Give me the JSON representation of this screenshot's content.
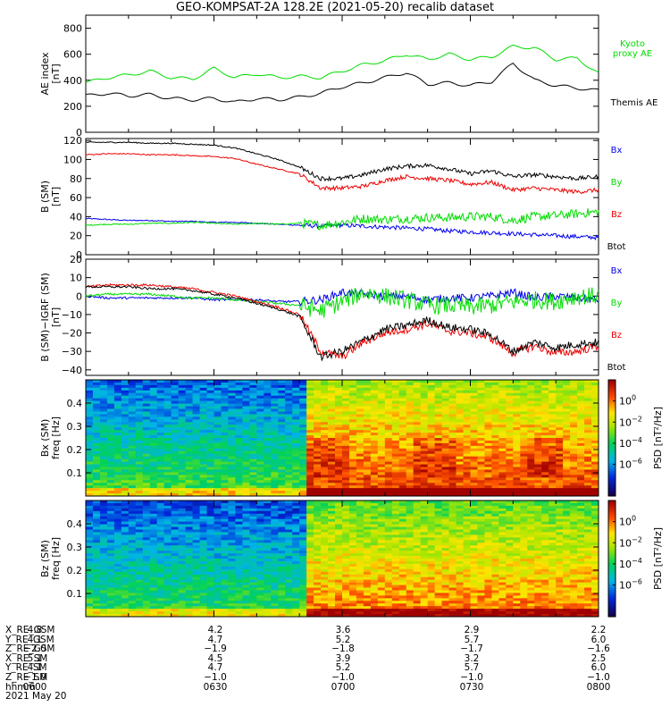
{
  "chart_data": [
    {
      "type": "line",
      "title": "GEO-KOMPSAT-2A 128.2E (2021-05-20) recalib dataset",
      "ylabel": [
        "AE index",
        "[nT]"
      ],
      "ylim": [
        0,
        900
      ],
      "yticks": [
        0,
        200,
        400,
        600,
        800
      ],
      "grid": false,
      "legend_position": "right",
      "x": [
        0,
        5,
        10,
        15,
        20,
        25,
        30,
        35,
        40,
        45,
        50,
        55,
        60,
        65,
        70,
        75,
        80,
        85,
        90,
        95,
        100,
        105,
        110,
        115,
        120
      ],
      "series": [
        {
          "name": "Kyoto proxy AE",
          "color": "#00dd00",
          "values": [
            380,
            420,
            440,
            470,
            420,
            410,
            490,
            420,
            450,
            420,
            430,
            420,
            470,
            520,
            550,
            600,
            560,
            600,
            560,
            580,
            660,
            650,
            560,
            570,
            450
          ]
        },
        {
          "name": "Themis AE",
          "color": "#000000",
          "values": [
            280,
            300,
            280,
            290,
            260,
            250,
            260,
            230,
            260,
            250,
            270,
            300,
            350,
            380,
            420,
            460,
            370,
            380,
            360,
            390,
            530,
            400,
            360,
            340,
            320
          ]
        }
      ]
    },
    {
      "type": "line",
      "ylabel": [
        "B (SM)",
        "[nT]"
      ],
      "ylim": [
        0,
        122
      ],
      "yticks": [
        0,
        20,
        40,
        60,
        80,
        100,
        120
      ],
      "grid": false,
      "legend_position": "right",
      "x": [
        0,
        5,
        10,
        15,
        20,
        25,
        30,
        35,
        40,
        45,
        50,
        55,
        60,
        65,
        70,
        75,
        80,
        85,
        90,
        95,
        100,
        105,
        110,
        115,
        120
      ],
      "series": [
        {
          "name": "Bx",
          "color": "#0000ee",
          "values": [
            38,
            37,
            36,
            36,
            35,
            35,
            34,
            34,
            33,
            32,
            31,
            30,
            31,
            30,
            29,
            28,
            27,
            25,
            24,
            23,
            22,
            21,
            20,
            19,
            18
          ]
        },
        {
          "name": "By",
          "color": "#00dd00",
          "values": [
            31,
            32,
            32,
            33,
            33,
            34,
            33,
            32,
            33,
            32,
            33,
            31,
            34,
            38,
            37,
            38,
            39,
            39,
            40,
            40,
            36,
            40,
            41,
            43,
            45
          ]
        },
        {
          "name": "Bz",
          "color": "#ee0000",
          "values": [
            105,
            106,
            106,
            105,
            105,
            104,
            103,
            101,
            95,
            90,
            85,
            70,
            70,
            72,
            78,
            82,
            80,
            78,
            74,
            76,
            68,
            70,
            68,
            66,
            68
          ]
        },
        {
          "name": "Btot",
          "color": "#000000",
          "values": [
            118,
            118,
            118,
            117,
            117,
            116,
            115,
            112,
            106,
            100,
            92,
            80,
            80,
            84,
            90,
            93,
            94,
            90,
            85,
            88,
            82,
            84,
            82,
            80,
            82
          ]
        }
      ]
    },
    {
      "type": "line",
      "ylabel": [
        "B (SM)−IGRF (SM)",
        "[nT]"
      ],
      "ylim": [
        -43,
        20
      ],
      "yticks": [
        -40,
        -30,
        -20,
        -10,
        0,
        10,
        20
      ],
      "grid": false,
      "legend_position": "right",
      "x": [
        0,
        5,
        10,
        15,
        20,
        25,
        30,
        35,
        40,
        45,
        50,
        55,
        60,
        65,
        70,
        75,
        80,
        85,
        90,
        95,
        100,
        105,
        110,
        115,
        120
      ],
      "series": [
        {
          "name": "Bx",
          "color": "#0000ee",
          "values": [
            0,
            -1,
            -1,
            -1,
            -1,
            -1,
            -2,
            -2,
            -2,
            -3,
            -3,
            -2,
            2,
            1,
            0,
            0,
            -2,
            -1,
            -1,
            0,
            2,
            -1,
            0,
            -1,
            -2
          ]
        },
        {
          "name": "By",
          "color": "#00dd00",
          "values": [
            0,
            1,
            1,
            1,
            0,
            -1,
            -1,
            -2,
            -3,
            -4,
            -5,
            -8,
            -3,
            2,
            0,
            -2,
            -5,
            -5,
            -6,
            -5,
            -3,
            -2,
            -3,
            0,
            0
          ]
        },
        {
          "name": "Bz",
          "color": "#ee0000",
          "values": [
            5,
            6,
            6,
            6,
            5,
            4,
            2,
            0,
            -3,
            -6,
            -10,
            -30,
            -33,
            -25,
            -20,
            -18,
            -15,
            -19,
            -20,
            -23,
            -31,
            -27,
            -31,
            -30,
            -27
          ]
        },
        {
          "name": "Btot",
          "color": "#000000",
          "values": [
            5,
            5,
            5,
            4,
            4,
            3,
            1,
            -1,
            -4,
            -7,
            -11,
            -33,
            -30,
            -24,
            -18,
            -16,
            -13,
            -17,
            -18,
            -21,
            -30,
            -25,
            -28,
            -26,
            -25
          ]
        }
      ]
    },
    {
      "type": "heatmap",
      "ylabel": [
        "Bx (SM)",
        "freq [Hz]"
      ],
      "ylim": [
        0,
        0.5
      ],
      "yticks": [
        0.1,
        0.2,
        0.3,
        0.4
      ],
      "colorbar": {
        "label": "PSD [nT²/Hz]",
        "scale": "log",
        "range": [
          1e-09,
          100.0
        ],
        "ticks": [
          "10^0",
          "10^-2",
          "10^-4",
          "10^-6"
        ]
      }
    },
    {
      "type": "heatmap",
      "ylabel": [
        "Bz (SM)",
        "freq [Hz]"
      ],
      "ylim": [
        0,
        0.5
      ],
      "yticks": [
        0.1,
        0.2,
        0.3,
        0.4
      ],
      "colorbar": {
        "label": "PSD [nT²/Hz]",
        "scale": "log",
        "range": [
          1e-09,
          100.0
        ],
        "ticks": [
          "10^0",
          "10^-2",
          "10^-4",
          "10^-6"
        ]
      }
    }
  ],
  "time_axis": {
    "start_minute": 0,
    "end_minute": 120,
    "hhmm": [
      "0600",
      "0630",
      "0700",
      "0730",
      "0800"
    ],
    "date": "2021 May 20"
  },
  "ephemeris": [
    {
      "name": "X_RE_GSM",
      "values": [
        "4.8",
        "4.2",
        "3.6",
        "2.9",
        "2.2"
      ]
    },
    {
      "name": "Y_RE_GSM",
      "values": [
        "4.1",
        "4.7",
        "5.2",
        "5.7",
        "6.0"
      ]
    },
    {
      "name": "Z_RE_GSM",
      "values": [
        "−2.0",
        "−1.9",
        "−1.8",
        "−1.7",
        "−1.6"
      ]
    },
    {
      "name": "X_RE_SM",
      "values": [
        "5.1",
        "4.5",
        "3.9",
        "3.2",
        "2.5"
      ]
    },
    {
      "name": "Y_RE_SM",
      "values": [
        "4.1",
        "4.7",
        "5.2",
        "5.7",
        "6.0"
      ]
    },
    {
      "name": "Z_RE_SM",
      "values": [
        "−1.0",
        "−1.0",
        "−1.0",
        "−1.0",
        "−1.0"
      ]
    },
    {
      "name": "hhmm",
      "values": [
        "0600",
        "0630",
        "0700",
        "0730",
        "0800"
      ]
    }
  ]
}
